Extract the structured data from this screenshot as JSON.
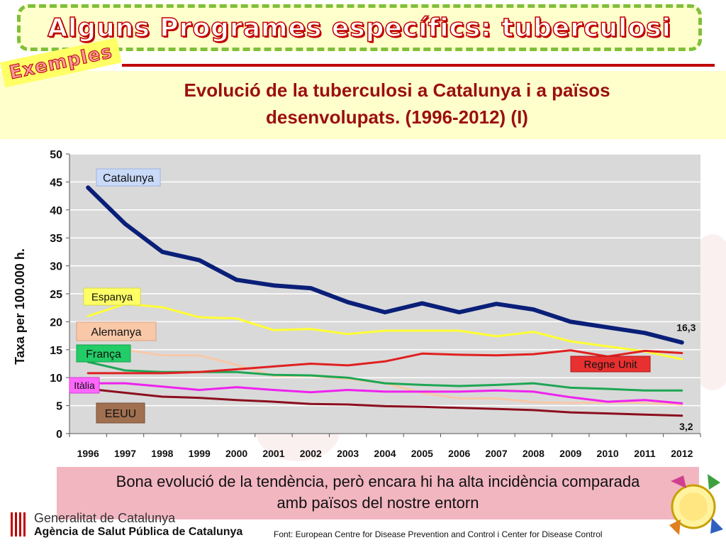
{
  "slide": {
    "banner_title": "Alguns Programes específics: tuberculosi",
    "badge": "Exemples",
    "chart_title_line1": "Evolució de la  tuberculosi a Catalunya i a països",
    "chart_title_line2": "desenvolupats. (1996-2012) (I)",
    "footer_line1": "Bona evolució de la tendència, però encara hi ha alta incidència comparada",
    "footer_line2": "amb països del nostre entorn",
    "org_line1": "Generalitat de Catalunya",
    "org_line2": "Agència de Salut Pública de Catalunya",
    "source": "Font: European Centre for Disease  Prevention and Control i Center for Disease Control"
  },
  "colors": {
    "title": "#9b0f0f",
    "plot_bg": "#d9d9d9",
    "banner_border": "#7fbf3a",
    "banner_bg": "#ffffcc"
  },
  "chart_data": {
    "type": "line",
    "title": "Evolució de la  tuberculosi a Catalunya i a països desenvolupats. (1996-2012) (I)",
    "xlabel": "",
    "ylabel": "Taxa per 100.000 h.",
    "ylim": [
      0,
      50
    ],
    "yticks": [
      0,
      5,
      10,
      15,
      20,
      25,
      30,
      35,
      40,
      45,
      50
    ],
    "grid": true,
    "x": [
      "1996",
      "1997",
      "1998",
      "1999",
      "2000",
      "2001",
      "2002",
      "2003",
      "2004",
      "2005",
      "2006",
      "2007",
      "2008",
      "2009",
      "2010",
      "2011",
      "2012"
    ],
    "series": [
      {
        "name": "Catalunya",
        "color": "#0a1f78",
        "width": 6,
        "values": [
          44,
          37.5,
          32.5,
          31,
          27.5,
          26.5,
          26,
          23.5,
          21.7,
          23.3,
          21.7,
          23.2,
          22.2,
          20,
          19,
          18,
          16.3
        ]
      },
      {
        "name": "Espanya",
        "color": "#ffff33",
        "width": 3,
        "values": [
          21,
          23.2,
          22.6,
          20.8,
          20.6,
          18.5,
          18.7,
          17.8,
          18.4,
          18.4,
          18.4,
          17.4,
          18.2,
          16.5,
          15.6,
          14.7,
          13.3
        ]
      },
      {
        "name": "Alemanya",
        "color": "#f8c8a8",
        "width": 3,
        "values": [
          15,
          15,
          14,
          14,
          12.3,
          10.3,
          10.3,
          9.8,
          9,
          7.3,
          6.3,
          6.3,
          5.6,
          5.5,
          5.6,
          5.5,
          5.2
        ]
      },
      {
        "name": "França",
        "color": "#1ea654",
        "width": 3,
        "values": [
          12.8,
          11.3,
          11,
          11,
          11,
          10.5,
          10.4,
          10,
          9,
          8.7,
          8.5,
          8.7,
          9,
          8.2,
          8,
          7.7,
          7.7
        ]
      },
      {
        "name": "Regne Unit",
        "color": "#e02020",
        "width": 3,
        "values": [
          10.8,
          10.8,
          10.8,
          11,
          11.5,
          12,
          12.5,
          12.2,
          12.9,
          14.3,
          14.1,
          14,
          14.2,
          14.9,
          13.8,
          14.8,
          14.4
        ]
      },
      {
        "name": "Itàlia",
        "color": "#ee22ee",
        "width": 3,
        "values": [
          9,
          9,
          8.4,
          7.8,
          8.3,
          7.8,
          7.4,
          7.8,
          7.5,
          7.5,
          7.5,
          7.7,
          7.5,
          6.5,
          5.7,
          6,
          5.4
        ]
      },
      {
        "name": "EEUU",
        "color": "#8b0e1e",
        "width": 3,
        "values": [
          8,
          7.3,
          6.6,
          6.4,
          6,
          5.7,
          5.3,
          5.2,
          4.9,
          4.8,
          4.6,
          4.4,
          4.2,
          3.8,
          3.6,
          3.4,
          3.2
        ]
      }
    ],
    "legend_labels": [
      {
        "name": "Catalunya",
        "bg": "#c9daf8",
        "border": "#a0b4e0"
      },
      {
        "name": "Espanya",
        "bg": "#ffff66",
        "border": "#d8d840"
      },
      {
        "name": "Alemanya",
        "bg": "#f8c8a8",
        "border": "#e0a080"
      },
      {
        "name": "França",
        "bg": "#22cc66",
        "border": "#18a050"
      },
      {
        "name": "Regne Unit",
        "bg": "#e83030",
        "border": "#b01818"
      },
      {
        "name": "Itàlia",
        "bg": "#ff66ff",
        "border": "#d040d0"
      },
      {
        "name": "EEUU",
        "bg": "#a07050",
        "border": "#7a5038"
      }
    ],
    "annotations": [
      {
        "series": "Catalunya",
        "year": "2012",
        "text": "16,3"
      },
      {
        "series": "EEUU",
        "year": "2012",
        "text": "3,2"
      }
    ]
  }
}
